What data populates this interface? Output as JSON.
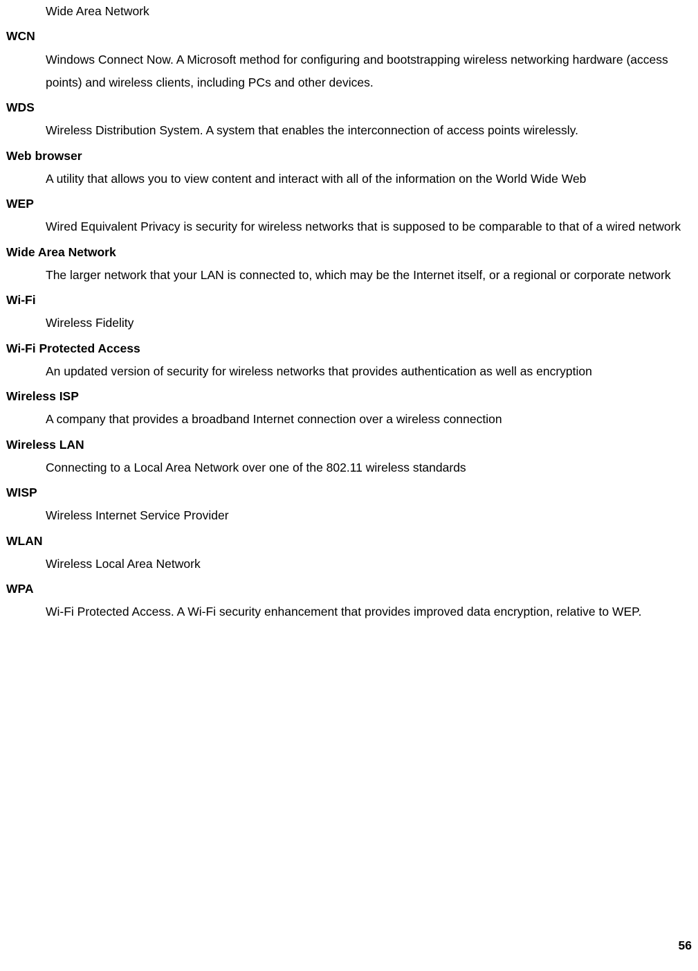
{
  "leadin": "Wide Area Network",
  "entries": [
    {
      "term": "WCN",
      "def": "Windows Connect Now. A Microsoft method for configuring and bootstrapping wireless networking hardware (access points) and wireless clients, including PCs and other devices."
    },
    {
      "term": "WDS",
      "def": "Wireless Distribution System. A system that enables the interconnection of access points wirelessly."
    },
    {
      "term": "Web browser",
      "def": "A utility that allows you to view content and interact with all of the information on the World Wide Web"
    },
    {
      "term": "WEP",
      "def": "Wired Equivalent Privacy is security for wireless networks that is supposed to be comparable to that of a wired network"
    },
    {
      "term": "Wide Area Network",
      "def": "The larger network that your LAN is connected to, which may be the Internet itself, or a regional or corporate network"
    },
    {
      "term": "Wi-Fi",
      "def": "Wireless Fidelity"
    },
    {
      "term": "Wi-Fi Protected Access",
      "def": "An updated version of security for wireless networks that provides authentication as well as encryption"
    },
    {
      "term": "Wireless ISP",
      "def": "A company that provides a broadband Internet connection over a wireless connection"
    },
    {
      "term": "Wireless LAN",
      "def": "Connecting to a Local Area Network over one of the 802.11 wireless standards"
    },
    {
      "term": "WISP",
      "def": "Wireless Internet Service Provider"
    },
    {
      "term": "WLAN",
      "def": "Wireless Local Area Network"
    },
    {
      "term": "WPA",
      "def": "Wi-Fi Protected Access. A Wi-Fi security enhancement that provides improved data encryption, relative to WEP."
    }
  ],
  "page_number": "56"
}
